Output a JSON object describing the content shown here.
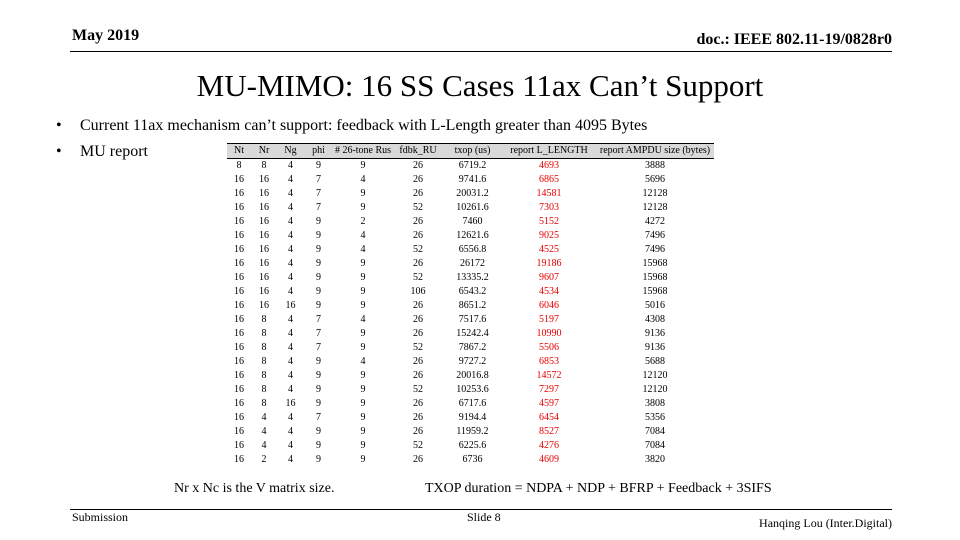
{
  "header": {
    "date": "May 2019",
    "doc_id": "doc.: IEEE 802.11-19/0828r0"
  },
  "title": "MU-MIMO: 16 SS Cases 11ax Can’t Support",
  "bullets": [
    {
      "dot": "•",
      "text": "Current 11ax mechanism can’t support: feedback with L-Length greater than 4095 Bytes"
    },
    {
      "dot": "•",
      "text": "MU report"
    }
  ],
  "table": {
    "headers": [
      "Nt",
      "Nr",
      "Ng",
      "phi",
      "# 26-tone Rus",
      "fdbk_RU",
      "txop (us)",
      "report L_LENGTH",
      "report AMPDU size (bytes)"
    ],
    "rows": [
      [
        "8",
        "8",
        "4",
        "9",
        "9",
        "26",
        "6719.2",
        "4693",
        "3888"
      ],
      [
        "16",
        "16",
        "4",
        "7",
        "4",
        "26",
        "9741.6",
        "6865",
        "5696"
      ],
      [
        "16",
        "16",
        "4",
        "7",
        "9",
        "26",
        "20031.2",
        "14581",
        "12128"
      ],
      [
        "16",
        "16",
        "4",
        "7",
        "9",
        "52",
        "10261.6",
        "7303",
        "12128"
      ],
      [
        "16",
        "16",
        "4",
        "9",
        "2",
        "26",
        "7460",
        "5152",
        "4272"
      ],
      [
        "16",
        "16",
        "4",
        "9",
        "4",
        "26",
        "12621.6",
        "9025",
        "7496"
      ],
      [
        "16",
        "16",
        "4",
        "9",
        "4",
        "52",
        "6556.8",
        "4525",
        "7496"
      ],
      [
        "16",
        "16",
        "4",
        "9",
        "9",
        "26",
        "26172",
        "19186",
        "15968"
      ],
      [
        "16",
        "16",
        "4",
        "9",
        "9",
        "52",
        "13335.2",
        "9607",
        "15968"
      ],
      [
        "16",
        "16",
        "4",
        "9",
        "9",
        "106",
        "6543.2",
        "4534",
        "15968"
      ],
      [
        "16",
        "16",
        "16",
        "9",
        "9",
        "26",
        "8651.2",
        "6046",
        "5016"
      ],
      [
        "16",
        "8",
        "4",
        "7",
        "4",
        "26",
        "7517.6",
        "5197",
        "4308"
      ],
      [
        "16",
        "8",
        "4",
        "7",
        "9",
        "26",
        "15242.4",
        "10990",
        "9136"
      ],
      [
        "16",
        "8",
        "4",
        "7",
        "9",
        "52",
        "7867.2",
        "5506",
        "9136"
      ],
      [
        "16",
        "8",
        "4",
        "9",
        "4",
        "26",
        "9727.2",
        "6853",
        "5688"
      ],
      [
        "16",
        "8",
        "4",
        "9",
        "9",
        "26",
        "20016.8",
        "14572",
        "12120"
      ],
      [
        "16",
        "8",
        "4",
        "9",
        "9",
        "52",
        "10253.6",
        "7297",
        "12120"
      ],
      [
        "16",
        "8",
        "16",
        "9",
        "9",
        "26",
        "6717.6",
        "4597",
        "3808"
      ],
      [
        "16",
        "4",
        "4",
        "7",
        "9",
        "26",
        "9194.4",
        "6454",
        "5356"
      ],
      [
        "16",
        "4",
        "4",
        "9",
        "9",
        "26",
        "11959.2",
        "8527",
        "7084"
      ],
      [
        "16",
        "4",
        "4",
        "9",
        "9",
        "52",
        "6225.6",
        "4276",
        "7084"
      ],
      [
        "16",
        "2",
        "4",
        "9",
        "9",
        "26",
        "6736",
        "4609",
        "3820"
      ]
    ],
    "highlight_color": "#e60000"
  },
  "notes": {
    "left": "Nr x Nc is the V matrix size.",
    "right": "TXOP duration = NDPA + NDP + BFRP + Feedback + 3SIFS"
  },
  "footer": {
    "left": "Submission",
    "center": "Slide 8",
    "right": "Hanqing Lou (Inter.Digital)"
  }
}
